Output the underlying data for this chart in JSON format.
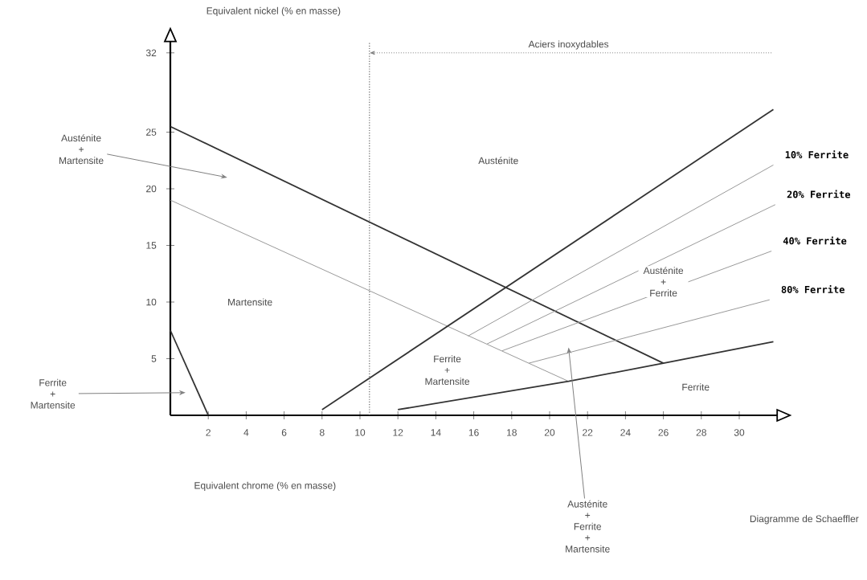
{
  "chart_data": {
    "type": "line",
    "xlabel": "Equivalent chrome (% en masse)",
    "ylabel": "Equivalent nickel (% en masse)",
    "xlim": [
      0,
      32
    ],
    "ylim": [
      0,
      33
    ],
    "xticks": [
      2,
      4,
      6,
      8,
      10,
      12,
      14,
      16,
      18,
      20,
      22,
      24,
      26,
      28,
      30
    ],
    "yticks": [
      5,
      10,
      15,
      20,
      25,
      32
    ],
    "grid": false,
    "series": [
      {
        "x": [
          0,
          26
        ],
        "values": [
          25.5,
          4.6
        ],
        "color": "#333333"
      },
      {
        "x": [
          0,
          21
        ],
        "values": [
          19,
          3
        ],
        "color": "#999999"
      },
      {
        "x": [
          8,
          31.8
        ],
        "values": [
          0.5,
          27
        ],
        "color": "#333333"
      },
      {
        "x": [
          12,
          21,
          26,
          31.8
        ],
        "values": [
          0.5,
          3,
          4.6,
          6.5
        ],
        "color": "#333333"
      },
      {
        "x": [
          0,
          2
        ],
        "values": [
          7.5,
          0
        ],
        "color": "#333333"
      },
      {
        "name": "10% Ferrite",
        "x": [
          15.7,
          31.8
        ],
        "values": [
          7,
          22.1
        ],
        "color": "#999999"
      },
      {
        "name": "20% Ferrite",
        "x": [
          16.7,
          31.9
        ],
        "values": [
          6.3,
          18.6
        ],
        "color": "#999999"
      },
      {
        "name": "40% Ferrite",
        "x": [
          17.5,
          31.7
        ],
        "values": [
          5.7,
          14.5
        ],
        "color": "#999999"
      },
      {
        "name": "80% Ferrite",
        "x": [
          18.9,
          31.6
        ],
        "values": [
          4.6,
          10.2
        ],
        "color": "#999999"
      }
    ],
    "ref_lines": [
      {
        "axis": "x",
        "value": 10.5,
        "line_style": "dotted",
        "color": "#666666"
      }
    ],
    "annotations": [
      "Aciers inoxydables",
      "Austénite",
      "Martensite",
      "Ferrite",
      "Austénite + Ferrite",
      "Ferrite + Martensite",
      "Austénite + Martensite",
      "Ferrite + Martensite",
      "Austénite + Ferrite + Martensite",
      "Diagramme de Schaeffler"
    ]
  }
}
